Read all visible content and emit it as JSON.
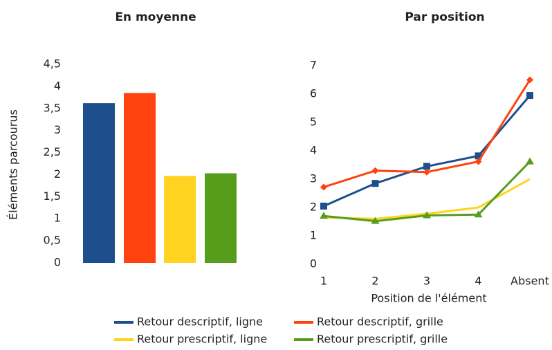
{
  "chart_data": [
    {
      "type": "bar",
      "title": "En moyenne",
      "y_label": "Éléments parcourus",
      "values": [
        3.62,
        3.85,
        1.97,
        2.03
      ],
      "colors": [
        "#1c4f8c",
        "#ff420e",
        "#ffd320",
        "#579d1c"
      ],
      "ylim": [
        0,
        4.5
      ],
      "yticks": [
        0,
        {
          "value": 0.5,
          "label": "0,5"
        },
        1,
        {
          "value": 1.5,
          "label": "1,5"
        },
        2,
        {
          "value": 2.5,
          "label": "2,5"
        },
        3,
        {
          "value": 3.5,
          "label": "3,5"
        },
        4,
        {
          "value": 4.5,
          "label": "4,5"
        }
      ],
      "grid": false
    },
    {
      "type": "line",
      "title": "Par position",
      "x_label": "Position de l'élément",
      "categories": [
        "1",
        "2",
        "3",
        "4",
        "Absent"
      ],
      "series": [
        {
          "name": "Retour descriptif, ligne",
          "color": "#1c4f8c",
          "marker": "square",
          "values": [
            2.05,
            2.85,
            3.45,
            3.82,
            5.95
          ]
        },
        {
          "name": "Retour descriptif, grille",
          "color": "#ff420e",
          "marker": "diamond",
          "values": [
            2.72,
            3.3,
            3.25,
            3.62,
            6.5
          ]
        },
        {
          "name": "Retour prescriptif, ligne",
          "color": "#ffd320",
          "marker": "none",
          "values": [
            1.65,
            1.6,
            1.78,
            2.0,
            3.0
          ]
        },
        {
          "name": "Retour prescriptif, grille",
          "color": "#579d1c",
          "marker": "triangle",
          "values": [
            1.7,
            1.52,
            1.72,
            1.75,
            3.62
          ]
        }
      ],
      "ylim": [
        0,
        7
      ],
      "yticks": [
        0,
        1,
        2,
        3,
        4,
        5,
        6,
        7
      ],
      "grid": false
    }
  ]
}
